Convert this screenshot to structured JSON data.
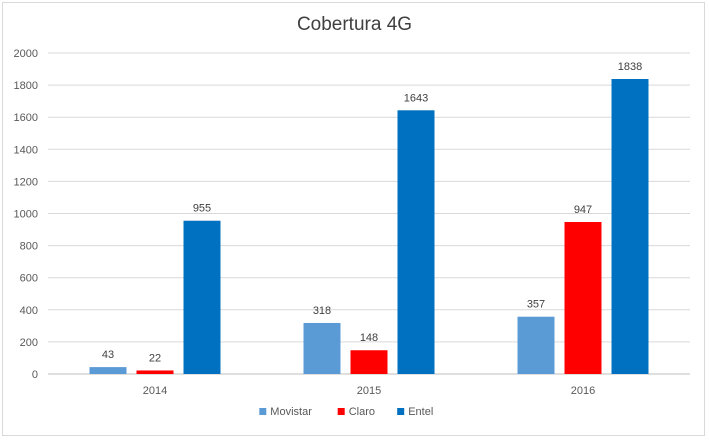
{
  "chart_data": {
    "type": "bar",
    "title": "Cobertura 4G",
    "categories": [
      "2014",
      "2015",
      "2016"
    ],
    "series": [
      {
        "name": "Movistar",
        "color": "#5b9bd5",
        "values": [
          43,
          318,
          357
        ]
      },
      {
        "name": "Claro",
        "color": "#ff0000",
        "values": [
          22,
          148,
          947
        ]
      },
      {
        "name": "Entel",
        "color": "#0070c0",
        "values": [
          955,
          1643,
          1838
        ]
      }
    ],
    "ylim": [
      0,
      2000
    ],
    "yticks": [
      0,
      200,
      400,
      600,
      800,
      1000,
      1200,
      1400,
      1600,
      1800,
      2000
    ],
    "grid": true,
    "legend_position": "bottom",
    "data_labels": true
  }
}
